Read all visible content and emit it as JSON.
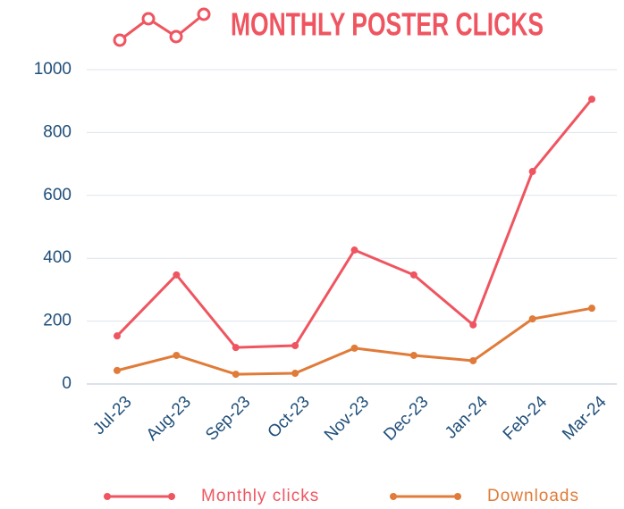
{
  "chart_data": {
    "type": "line",
    "title": "MONTHLY POSTER CLICKS",
    "categories": [
      "Jul-23",
      "Aug-23",
      "Sep-23",
      "Oct-23",
      "Nov-23",
      "Dec-23",
      "Jan-24",
      "Feb-24",
      "Mar-24"
    ],
    "series": [
      {
        "name": "Monthly clicks",
        "color": "#ef5560",
        "values": [
          153,
          347,
          116,
          122,
          426,
          347,
          188,
          676,
          906
        ]
      },
      {
        "name": "Downloads",
        "color": "#e07b39",
        "values": [
          43,
          91,
          31,
          34,
          114,
          91,
          74,
          207,
          241
        ]
      }
    ],
    "ylim": [
      0,
      1000
    ],
    "yticks": [
      0,
      200,
      400,
      600,
      800,
      1000
    ],
    "grid": true,
    "legend": "bottom"
  }
}
